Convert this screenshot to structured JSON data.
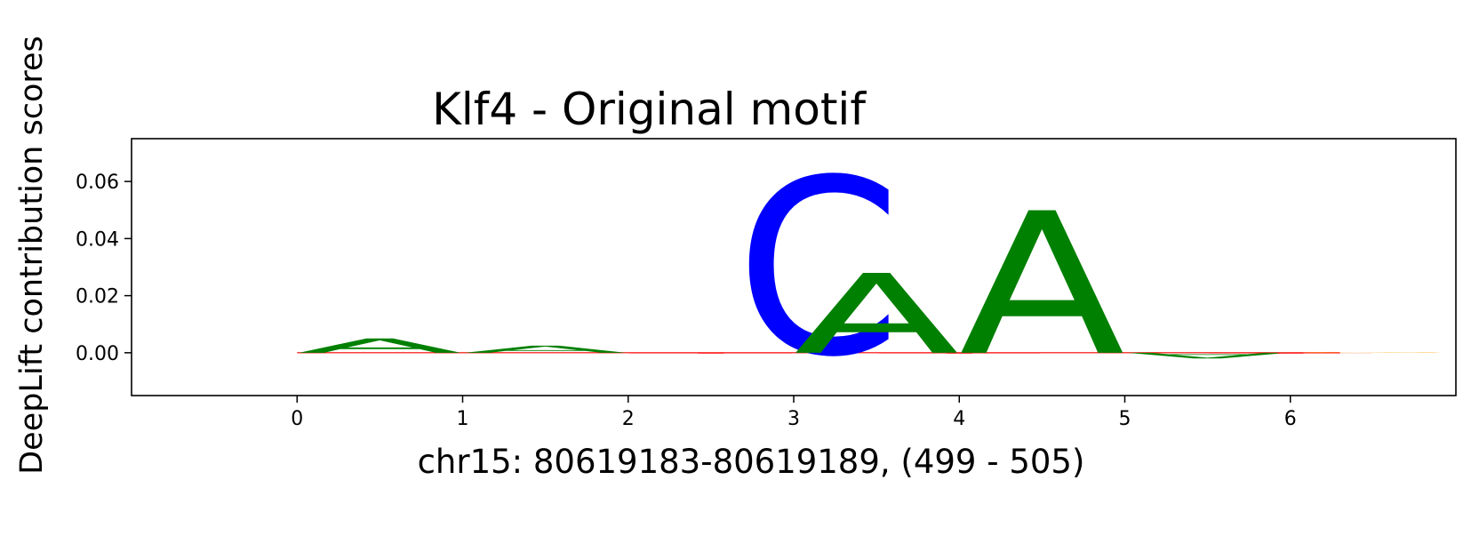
{
  "chart_data": {
    "type": "sequence-logo",
    "title": "Klf4 - Original motif",
    "xlabel": "chr15: 80619183-80619189, (499 - 505)",
    "ylabel": "DeepLift contribution scores",
    "xlim": [
      -1,
      7
    ],
    "ylim": [
      -0.015,
      0.075
    ],
    "xticks": [
      "0",
      "1",
      "2",
      "3",
      "4",
      "5",
      "6"
    ],
    "yticks": [
      "0.00",
      "0.02",
      "0.04",
      "0.06"
    ],
    "colors": {
      "A": "#008000",
      "C": "#0000ff",
      "G": "#ffa500",
      "T": "#ff0000"
    },
    "letters": [
      {
        "pos": 0,
        "base": "A",
        "value": 0.005
      },
      {
        "pos": 1,
        "base": "A",
        "value": 0.0025
      },
      {
        "pos": 2,
        "base": "T",
        "value": -0.0003
      },
      {
        "pos": 2.65,
        "base": "C",
        "value": 0.062
      },
      {
        "pos": 3,
        "base": "A",
        "value": 0.028
      },
      {
        "pos": 3.5,
        "base": "T",
        "value": -0.0003
      },
      {
        "pos": 4,
        "base": "A",
        "value": 0.05
      },
      {
        "pos": 5,
        "base": "A",
        "value": -0.002
      },
      {
        "pos": 5.5,
        "base": "T",
        "value": -0.0003
      },
      {
        "pos": 6,
        "base": "G",
        "value": 0.0002
      }
    ]
  }
}
